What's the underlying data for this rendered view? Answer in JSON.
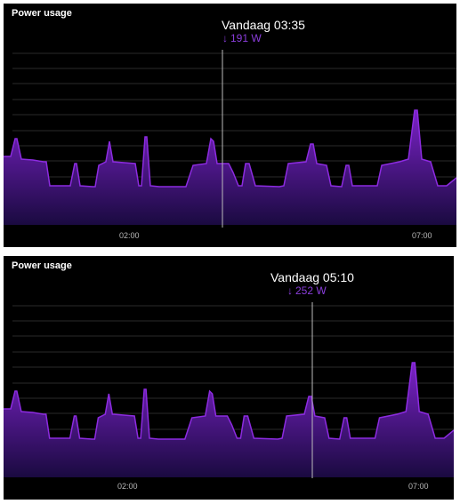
{
  "cards": [
    {
      "title": "Power usage",
      "tooltip": {
        "time": "Vandaag 03:35",
        "value": "191 W",
        "arrow_icon": "arrow-down-icon"
      },
      "x_ticks": [
        "02:00",
        "07:00"
      ]
    },
    {
      "title": "Power usage",
      "tooltip": {
        "time": "Vandaag 05:10",
        "value": "252 W",
        "arrow_icon": "arrow-down-icon"
      },
      "x_ticks": [
        "02:00",
        "07:00"
      ]
    }
  ],
  "colors": {
    "card_background": "#000000",
    "series_fill_top": "#7b22c8",
    "series_fill_bottom": "#1a0a40",
    "series_line": "#8c2be0",
    "accent_text": "#8a3ddb",
    "grid": "#2a2a2a",
    "cursor": "#bbbbbb"
  }
}
